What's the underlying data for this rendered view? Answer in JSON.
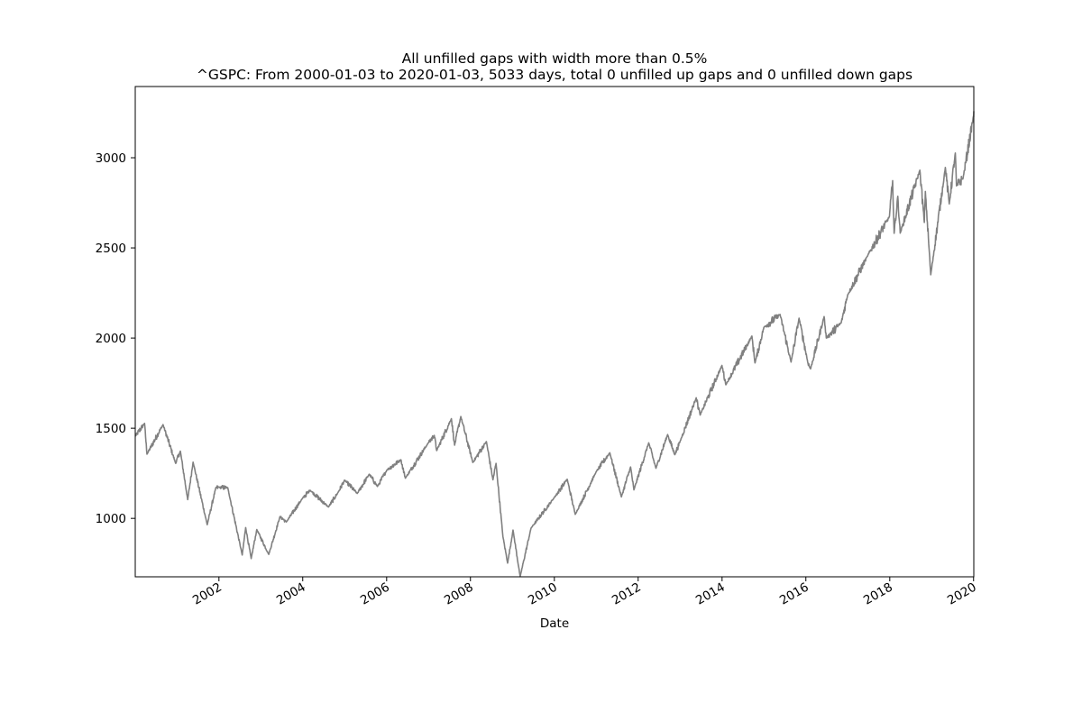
{
  "chart_data": {
    "type": "line",
    "title": "All unfilled gaps with width more than 0.5%",
    "subtitle": "^GSPC: From 2000-01-03 to 2020-01-03, 5033 days, total 0 unfilled up gaps and 0 unfilled down gaps",
    "xlabel": "Date",
    "ylabel": "",
    "xlim": [
      "2000-01-03",
      "2020-01-03"
    ],
    "ylim": [
      676,
      3395
    ],
    "x_ticks": [
      "2002",
      "2004",
      "2006",
      "2008",
      "2010",
      "2012",
      "2014",
      "2016",
      "2018",
      "2020"
    ],
    "y_ticks": [
      1000,
      1500,
      2000,
      2500,
      3000
    ],
    "grid": false,
    "line_color": "#808080",
    "series": [
      {
        "x": [
          "2000-01-03",
          "2000-03-24",
          "2000-04-14",
          "2000-09-01",
          "2000-12-20",
          "2001-01-30",
          "2001-04-04",
          "2001-05-21",
          "2001-09-21",
          "2001-12-05",
          "2002-01-04",
          "2002-03-19",
          "2002-07-23",
          "2002-08-22",
          "2002-10-09",
          "2002-11-27",
          "2003-03-11",
          "2003-06-17",
          "2003-08-11",
          "2003-12-31",
          "2004-03-05",
          "2004-08-12",
          "2004-11-03",
          "2004-12-31",
          "2005-04-20",
          "2005-08-02",
          "2005-10-13",
          "2006-01-03",
          "2006-05-05",
          "2006-06-13",
          "2006-12-29",
          "2007-02-20",
          "2007-03-13",
          "2007-07-19",
          "2007-08-16",
          "2007-10-09",
          "2008-01-22",
          "2008-05-19",
          "2008-07-15",
          "2008-08-11",
          "2008-10-10",
          "2008-11-20",
          "2009-01-06",
          "2009-03-09",
          "2009-06-12",
          "2009-12-31",
          "2010-04-23",
          "2010-07-02",
          "2010-12-31",
          "2011-04-29",
          "2011-08-08",
          "2011-10-27",
          "2011-11-25",
          "2012-04-02",
          "2012-06-04",
          "2012-09-14",
          "2012-11-15",
          "2012-12-31",
          "2013-05-21",
          "2013-06-24",
          "2013-12-31",
          "2014-02-03",
          "2014-09-18",
          "2014-10-15",
          "2014-12-31",
          "2015-05-21",
          "2015-08-25",
          "2015-11-03",
          "2016-01-20",
          "2016-02-11",
          "2016-06-08",
          "2016-06-27",
          "2016-11-04",
          "2016-12-30",
          "2017-06-19",
          "2017-12-29",
          "2018-01-26",
          "2018-02-08",
          "2018-03-12",
          "2018-04-02",
          "2018-09-20",
          "2018-10-29",
          "2018-11-07",
          "2018-12-24",
          "2019-04-30",
          "2019-06-03",
          "2019-07-26",
          "2019-08-05",
          "2019-10-02",
          "2019-12-31",
          "2020-01-03"
        ],
        "values": [
          1455,
          1527,
          1356,
          1520,
          1305,
          1373,
          1104,
          1312,
          965,
          1170,
          1172,
          1170,
          797,
          949,
          777,
          938,
          800,
          1010,
          980,
          1112,
          1156,
          1063,
          1143,
          1212,
          1138,
          1245,
          1177,
          1268,
          1325,
          1223,
          1418,
          1460,
          1376,
          1553,
          1406,
          1565,
          1310,
          1426,
          1214,
          1305,
          899,
          752,
          935,
          677,
          946,
          1115,
          1217,
          1022,
          1258,
          1364,
          1119,
          1285,
          1158,
          1419,
          1278,
          1465,
          1353,
          1426,
          1669,
          1573,
          1848,
          1741,
          2011,
          1862,
          2059,
          2131,
          1867,
          2110,
          1859,
          1829,
          2119,
          2000,
          2085,
          2239,
          2453,
          2674,
          2873,
          2581,
          2786,
          2582,
          2931,
          2641,
          2813,
          2351,
          2946,
          2744,
          3026,
          2844,
          2888,
          3231,
          3258
        ]
      }
    ]
  }
}
